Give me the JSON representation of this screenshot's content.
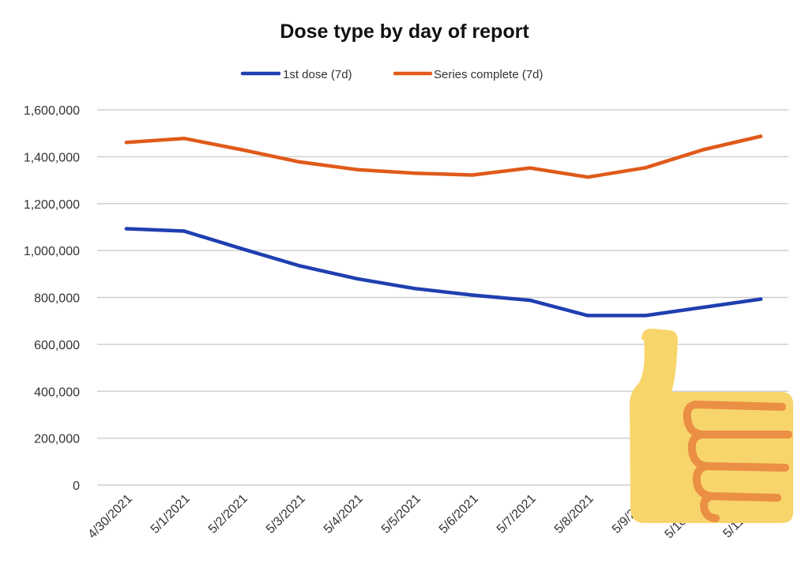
{
  "chart_data": {
    "type": "line",
    "title": "Dose type by day of report",
    "xlabel": "",
    "ylabel": "",
    "categories": [
      "4/30/2021",
      "5/1/2021",
      "5/2/2021",
      "5/3/2021",
      "5/4/2021",
      "5/5/2021",
      "5/6/2021",
      "5/7/2021",
      "5/8/2021",
      "5/9/2021",
      "5/10/2021",
      "5/11/2021"
    ],
    "ylim": [
      0,
      1600000
    ],
    "yticks": [
      {
        "value": 0,
        "label": "0"
      },
      {
        "value": 200000,
        "label": "200,000"
      },
      {
        "value": 400000,
        "label": "400,000"
      },
      {
        "value": 600000,
        "label": "600,000"
      },
      {
        "value": 800000,
        "label": "800,000"
      },
      {
        "value": 1000000,
        "label": "1,000,000"
      },
      {
        "value": 1200000,
        "label": "1,200,000"
      },
      {
        "value": 1400000,
        "label": "1,400,000"
      },
      {
        "value": 1600000,
        "label": "1,600,000"
      }
    ],
    "grid": true,
    "legend_position": "top",
    "series": [
      {
        "name": "1st dose (7d)",
        "color": "#1f3fb0",
        "values": [
          1093000,
          1083000,
          1008000,
          935000,
          880000,
          838000,
          810000,
          788000,
          723000,
          723000,
          758000,
          793000
        ]
      },
      {
        "name": "Series complete (7d)",
        "color": "#e05a1a",
        "values": [
          1461000,
          1478000,
          1430000,
          1378000,
          1345000,
          1330000,
          1322000,
          1352000,
          1313000,
          1353000,
          1430000,
          1487000
        ]
      }
    ]
  },
  "overlay": {
    "icon": "thumbs-up-icon"
  }
}
